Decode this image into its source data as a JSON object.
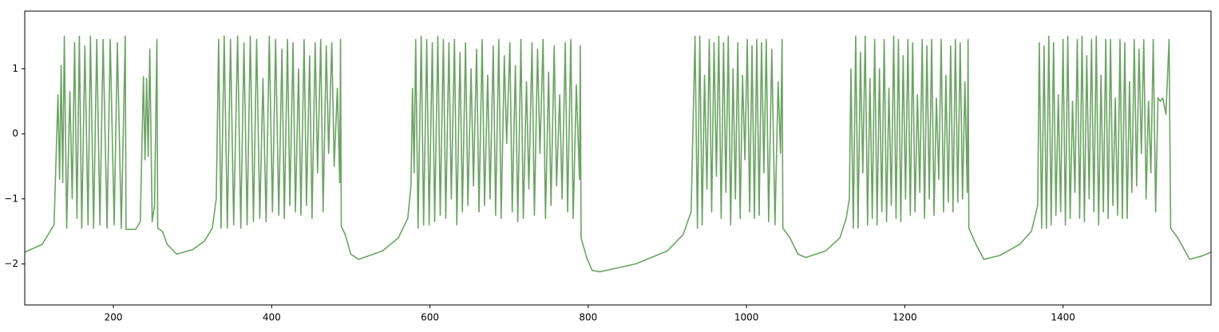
{
  "chart_data": {
    "type": "line",
    "color": "#6ba363",
    "grid": false,
    "xlim": [
      88,
      1587
    ],
    "ylim": [
      -2.63,
      1.885
    ],
    "xticks": [
      200,
      400,
      600,
      800,
      1000,
      1200,
      1400
    ],
    "yticks": [
      {
        "value": -2,
        "label": "−2"
      },
      {
        "value": -1,
        "label": "−1"
      },
      0,
      1
    ],
    "x": [
      88,
      110,
      125,
      130,
      132,
      134,
      136,
      138,
      141,
      145,
      148,
      151,
      154,
      157,
      160,
      164,
      168,
      171,
      175,
      179,
      183,
      187,
      192,
      196,
      201,
      205,
      210,
      215,
      216,
      228,
      234,
      238,
      240,
      242,
      244,
      246,
      249,
      252,
      255,
      256,
      262,
      268,
      280,
      300,
      315,
      325,
      330,
      333,
      336,
      340,
      344,
      348,
      352,
      357,
      361,
      365,
      369,
      373,
      377,
      381,
      385,
      389,
      393,
      397,
      401,
      405,
      409,
      413,
      416,
      420,
      423,
      427,
      430,
      434,
      437,
      441,
      444,
      448,
      451,
      455,
      458,
      462,
      465,
      469,
      472,
      476,
      479,
      483,
      486,
      487,
      488,
      493,
      500,
      510,
      540,
      560,
      572,
      576,
      578,
      580,
      582,
      585,
      589,
      592,
      596,
      599,
      603,
      606,
      610,
      613,
      617,
      620,
      624,
      627,
      631,
      634,
      638,
      641,
      645,
      648,
      652,
      655,
      659,
      662,
      666,
      669,
      673,
      676,
      680,
      683,
      687,
      690,
      694,
      697,
      701,
      704,
      708,
      711,
      715,
      718,
      722,
      725,
      729,
      732,
      736,
      739,
      743,
      746,
      750,
      753,
      757,
      760,
      764,
      767,
      771,
      774,
      778,
      781,
      785,
      789,
      790,
      791,
      798,
      805,
      815,
      860,
      900,
      920,
      930,
      935,
      938,
      941,
      944,
      947,
      950,
      953,
      956,
      959,
      962,
      965,
      968,
      971,
      974,
      977,
      980,
      983,
      986,
      989,
      992,
      995,
      998,
      1001,
      1004,
      1007,
      1010,
      1013,
      1016,
      1019,
      1022,
      1025,
      1028,
      1032,
      1036,
      1040,
      1043,
      1045,
      1046,
      1055,
      1065,
      1075,
      1100,
      1118,
      1126,
      1130,
      1132,
      1135,
      1138,
      1141,
      1144,
      1147,
      1150,
      1153,
      1156,
      1159,
      1162,
      1165,
      1168,
      1171,
      1174,
      1177,
      1180,
      1183,
      1186,
      1189,
      1192,
      1195,
      1198,
      1201,
      1204,
      1207,
      1210,
      1213,
      1216,
      1219,
      1222,
      1225,
      1228,
      1231,
      1234,
      1237,
      1240,
      1243,
      1246,
      1249,
      1252,
      1255,
      1258,
      1261,
      1264,
      1267,
      1270,
      1273,
      1276,
      1279,
      1280,
      1281,
      1290,
      1300,
      1320,
      1345,
      1360,
      1368,
      1370,
      1373,
      1376,
      1379,
      1382,
      1385,
      1388,
      1391,
      1394,
      1397,
      1400,
      1403,
      1406,
      1409,
      1412,
      1415,
      1418,
      1421,
      1424,
      1427,
      1430,
      1433,
      1436,
      1439,
      1442,
      1445,
      1448,
      1451,
      1454,
      1457,
      1460,
      1463,
      1466,
      1469,
      1472,
      1475,
      1478,
      1481,
      1484,
      1487,
      1490,
      1493,
      1496,
      1499,
      1502,
      1505,
      1508,
      1511,
      1514,
      1517,
      1520,
      1523,
      1526,
      1530,
      1534,
      1536,
      1545,
      1560,
      1575,
      1587
    ],
    "values": [
      -1.82,
      -1.7,
      -1.4,
      0.6,
      -0.7,
      1.05,
      -0.75,
      1.5,
      -1.45,
      0.65,
      -1.0,
      1.4,
      -1.3,
      1.5,
      -1.45,
      1.35,
      -1.4,
      1.5,
      -1.45,
      1.45,
      -1.4,
      1.45,
      -1.45,
      1.45,
      -1.4,
      1.4,
      -1.45,
      1.5,
      -1.47,
      -1.47,
      -1.35,
      0.88,
      -0.4,
      0.85,
      -0.35,
      1.3,
      -1.35,
      -1.1,
      1.45,
      -1.45,
      -1.5,
      -1.7,
      -1.85,
      -1.78,
      -1.65,
      -1.45,
      -1.0,
      1.45,
      -1.45,
      1.5,
      -1.45,
      1.45,
      -1.4,
      1.5,
      -1.45,
      1.4,
      -1.4,
      1.5,
      -1.35,
      1.45,
      -1.3,
      0.85,
      -1.35,
      1.5,
      -1.2,
      1.45,
      -1.25,
      1.3,
      -1.3,
      1.45,
      -1.1,
      1.4,
      -1.2,
      1.0,
      -1.25,
      1.45,
      -1.1,
      1.2,
      -1.3,
      1.4,
      -0.6,
      1.45,
      -1.2,
      1.35,
      -0.3,
      1.4,
      -0.5,
      0.7,
      -0.75,
      1.45,
      -1.42,
      -1.55,
      -1.85,
      -1.93,
      -1.8,
      -1.6,
      -1.3,
      -0.8,
      0.7,
      -0.6,
      1.45,
      -1.45,
      1.5,
      -1.4,
      1.45,
      -1.4,
      1.4,
      -1.35,
      1.5,
      -1.25,
      1.45,
      -1.3,
      1.4,
      -1.0,
      1.45,
      -1.4,
      1.25,
      -1.2,
      1.4,
      -1.1,
      1.0,
      -0.8,
      1.3,
      -1.2,
      1.45,
      -1.1,
      0.9,
      -1.0,
      1.35,
      -1.25,
      1.45,
      -1.3,
      1.2,
      -0.15,
      1.4,
      -1.2,
      1.05,
      -1.35,
      1.45,
      -1.3,
      0.8,
      -0.85,
      1.4,
      -1.25,
      1.3,
      -0.3,
      1.45,
      -1.3,
      0.95,
      -1.1,
      1.35,
      -0.8,
      0.6,
      -1.0,
      1.4,
      -1.2,
      1.45,
      -1.3,
      0.75,
      -0.7,
      1.35,
      -1.6,
      -1.9,
      -2.1,
      -2.12,
      -2.0,
      -1.8,
      -1.55,
      -1.2,
      1.5,
      -1.45,
      1.5,
      -1.4,
      0.9,
      -0.85,
      1.45,
      -1.2,
      1.4,
      -0.65,
      1.5,
      -1.3,
      1.4,
      -0.9,
      1.5,
      -1.4,
      1.0,
      -1.0,
      1.4,
      -1.3,
      0.9,
      -0.4,
      1.45,
      -1.2,
      1.35,
      -1.3,
      1.45,
      -1.25,
      1.4,
      -0.6,
      1.45,
      -1.35,
      1.3,
      -1.4,
      0.8,
      -0.3,
      1.45,
      -1.45,
      -1.6,
      -1.85,
      -1.9,
      -1.8,
      -1.6,
      -1.3,
      -1.0,
      1.0,
      -1.45,
      1.5,
      -1.45,
      1.25,
      -0.6,
      1.5,
      -1.4,
      0.85,
      -1.3,
      1.45,
      -1.4,
      1.0,
      -1.2,
      1.45,
      -1.35,
      0.7,
      -1.1,
      1.5,
      -1.3,
      1.45,
      -1.35,
      1.2,
      -1.0,
      1.45,
      -1.25,
      1.4,
      -1.2,
      0.6,
      -0.9,
      1.45,
      -1.3,
      1.35,
      -1.0,
      1.45,
      -1.25,
      0.55,
      -0.7,
      1.45,
      -1.2,
      0.9,
      -1.05,
      1.35,
      -1.2,
      1.45,
      -1.05,
      1.4,
      -1.0,
      0.8,
      -0.9,
      1.45,
      -1.45,
      -1.7,
      -1.93,
      -1.87,
      -1.7,
      -1.5,
      -1.1,
      1.4,
      -1.45,
      1.35,
      -1.45,
      1.5,
      -1.4,
      1.4,
      -1.25,
      0.6,
      -1.2,
      1.45,
      -1.4,
      1.5,
      -1.3,
      0.5,
      -0.9,
      1.45,
      -1.3,
      1.5,
      -1.35,
      1.2,
      -1.0,
      1.45,
      -1.2,
      1.5,
      -1.4,
      0.9,
      -1.2,
      1.45,
      -1.3,
      1.45,
      -1.1,
      0.55,
      -1.25,
      1.45,
      -1.3,
      1.4,
      -1.3,
      0.8,
      -0.9,
      1.45,
      -0.8,
      1.3,
      -0.3,
      1.45,
      -1.0,
      0.5,
      -0.6,
      1.45,
      -1.2,
      0.55,
      0.5,
      0.55,
      0.3,
      1.45,
      -1.45,
      -1.6,
      -1.93,
      -1.88,
      -1.82
    ]
  }
}
